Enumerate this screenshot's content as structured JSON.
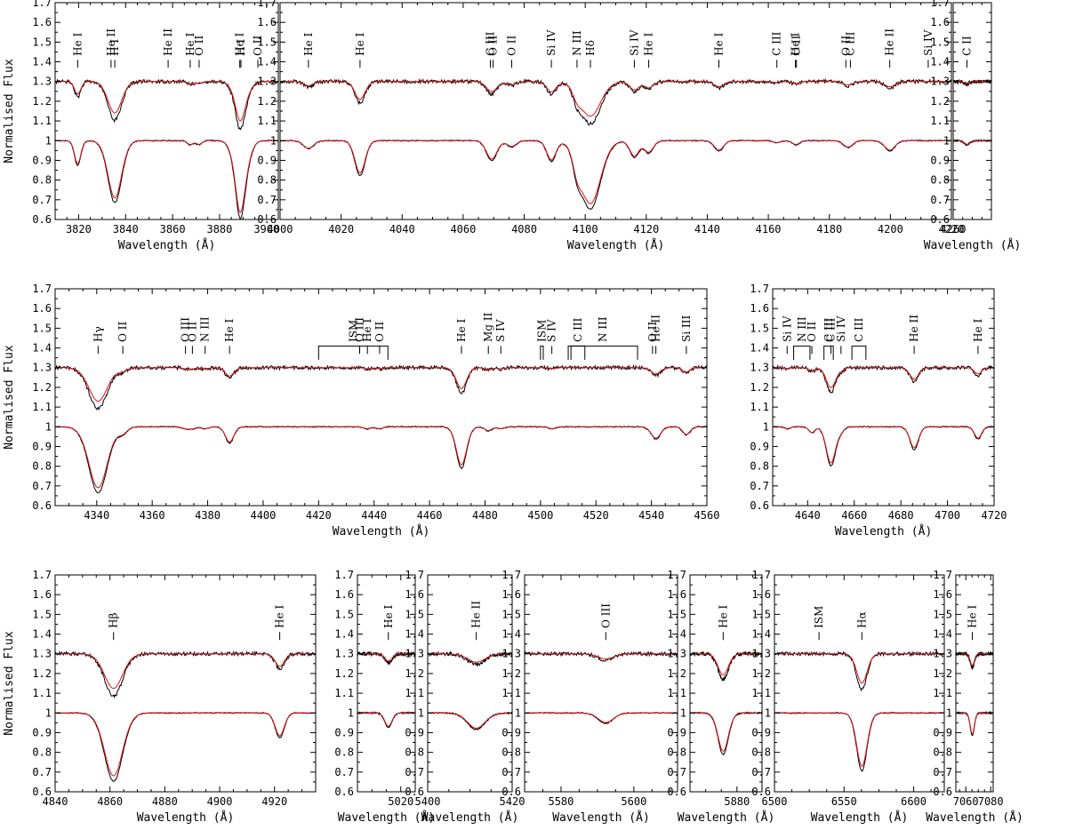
{
  "figure": {
    "ylabel": "Normalised Flux",
    "xlabel": "Wavelength (Å)",
    "colors": {
      "observed": "#000000",
      "model": "#e01010"
    }
  },
  "chart_data": [
    {
      "type": "line",
      "xlabel": "Wavelength (Å)",
      "ylabel": "Normalised Flux",
      "xlim": [
        3810,
        3905
      ],
      "ylim": [
        0.6,
        1.7
      ],
      "xticks": [
        3820,
        3840,
        3860,
        3880,
        3900
      ],
      "yticks": [
        0.6,
        0.7,
        0.8,
        0.9,
        1,
        1.1,
        1.2,
        1.3,
        1.4,
        1.5,
        1.6,
        1.7
      ],
      "lines": [
        {
          "label": "He I",
          "wl": 3819.6,
          "depth": 0.12,
          "width": 1.6
        },
        {
          "label": "He II",
          "wl": 3833.8,
          "depth": 0.0,
          "width": 1.5
        },
        {
          "label": "H I",
          "wl": 3835.4,
          "depth": 0.3,
          "width": 3.5
        },
        {
          "label": "He II",
          "wl": 3858.1,
          "depth": 0.0,
          "width": 1.5
        },
        {
          "label": "He I",
          "wl": 3867.5,
          "depth": 0.02,
          "width": 1.5
        },
        {
          "label": "O II",
          "wl": 3871.3,
          "depth": 0.02,
          "width": 1.5
        },
        {
          "label": "He I",
          "wl": 3888.6,
          "depth": 0.1,
          "width": 1.8
        },
        {
          "label": "H I",
          "wl": 3889.1,
          "depth": 0.28,
          "width": 3.2
        },
        {
          "label": "O II",
          "wl": 3896.3,
          "depth": 0.0,
          "width": 1.5
        }
      ],
      "series": [
        {
          "name": "",
          "role": "observed"
        },
        {
          "name": "",
          "role": "model"
        }
      ]
    },
    {
      "type": "line",
      "xlabel": "Wavelength (Å)",
      "ylabel": "",
      "xlim": [
        4000,
        4220
      ],
      "ylim": [
        0.6,
        1.7
      ],
      "xticks": [
        4000,
        4020,
        4040,
        4060,
        4080,
        4100,
        4120,
        4140,
        4160,
        4180,
        4200,
        4220
      ],
      "yticks": [
        0.6,
        0.7,
        0.8,
        0.9,
        1,
        1.1,
        1.2,
        1.3,
        1.4,
        1.5,
        1.6,
        1.7
      ],
      "lines": [
        {
          "label": "He I",
          "wl": 4009.3,
          "depth": 0.04,
          "width": 2.0
        },
        {
          "label": "He I",
          "wl": 4026.2,
          "depth": 0.17,
          "width": 2.0
        },
        {
          "label": "C III",
          "wl": 4068.9,
          "depth": 0.05,
          "width": 2.0
        },
        {
          "label": "O II",
          "wl": 4069.8,
          "depth": 0.05,
          "width": 2.0
        },
        {
          "label": "O II",
          "wl": 4075.9,
          "depth": 0.03,
          "width": 1.8
        },
        {
          "label": "Si IV",
          "wl": 4088.9,
          "depth": 0.1,
          "width": 1.8
        },
        {
          "label": "N III",
          "wl": 4097.3,
          "depth": 0.08,
          "width": 1.6
        },
        {
          "label": "Hδ",
          "wl": 4101.7,
          "depth": 0.33,
          "width": 4.0
        },
        {
          "label": "Si IV",
          "wl": 4116.1,
          "depth": 0.08,
          "width": 1.8
        },
        {
          "label": "He I",
          "wl": 4120.8,
          "depth": 0.06,
          "width": 1.8
        },
        {
          "label": "He I",
          "wl": 4143.8,
          "depth": 0.05,
          "width": 1.8
        },
        {
          "label": "C III",
          "wl": 4162.8,
          "depth": 0.01,
          "width": 1.5
        },
        {
          "label": "He I",
          "wl": 4168.9,
          "depth": 0.01,
          "width": 1.5
        },
        {
          "label": "O II",
          "wl": 4169.2,
          "depth": 0.01,
          "width": 1.5
        },
        {
          "label": "O II",
          "wl": 4185.4,
          "depth": 0.02,
          "width": 1.5
        },
        {
          "label": "C III",
          "wl": 4186.9,
          "depth": 0.02,
          "width": 1.5
        },
        {
          "label": "He II",
          "wl": 4199.8,
          "depth": 0.05,
          "width": 2.0
        },
        {
          "label": "Si IV",
          "wl": 4212.4,
          "depth": 0.0,
          "width": 1.5
        }
      ],
      "series": [
        {
          "name": "",
          "role": "observed"
        },
        {
          "name": "",
          "role": "model"
        }
      ]
    },
    {
      "type": "line",
      "xlabel": "Wavelength (Å)",
      "ylabel": "",
      "xlim": [
        4260,
        4280
      ],
      "ylim": [
        0.6,
        1.7
      ],
      "xticks": [
        4260
      ],
      "yticks": [
        0.6,
        0.7,
        0.8,
        0.9,
        1,
        1.1,
        1.2,
        1.3,
        1.4,
        1.5,
        1.6,
        1.7
      ],
      "lines": [
        {
          "label": "C II",
          "wl": 4267.2,
          "depth": 0.02,
          "width": 1.8
        }
      ],
      "series": [
        {
          "name": "",
          "role": "observed"
        },
        {
          "name": "",
          "role": "model"
        }
      ]
    },
    {
      "type": "line",
      "xlabel": "Wavelength (Å)",
      "ylabel": "Normalised Flux",
      "xlim": [
        4325,
        4560
      ],
      "ylim": [
        0.6,
        1.7
      ],
      "xticks": [
        4340,
        4360,
        4380,
        4400,
        4420,
        4440,
        4460,
        4480,
        4500,
        4520,
        4540,
        4560
      ],
      "yticks": [
        0.6,
        0.7,
        0.8,
        0.9,
        1,
        1.1,
        1.2,
        1.3,
        1.4,
        1.5,
        1.6,
        1.7
      ],
      "lines": [
        {
          "label": "Hγ",
          "wl": 4340.5,
          "depth": 0.32,
          "width": 4.0
        },
        {
          "label": "O II",
          "wl": 4349.4,
          "depth": 0.03,
          "width": 2.0
        },
        {
          "label": "O III",
          "wl": 4372.0,
          "depth": 0.01,
          "width": 1.5
        },
        {
          "label": "O II",
          "wl": 4374.5,
          "depth": 0.01,
          "width": 1.5
        },
        {
          "label": "N III",
          "wl": 4379.1,
          "depth": 0.01,
          "width": 1.5
        },
        {
          "label": "He I",
          "wl": 4387.9,
          "depth": 0.08,
          "width": 1.8
        },
        {
          "label": "O III",
          "wl": 4434.8,
          "depth": 0.0,
          "width": 1.5
        },
        {
          "label": "He I",
          "wl": 4437.6,
          "depth": 0.01,
          "width": 1.5
        },
        {
          "label": "O II",
          "wl": 4442.0,
          "depth": 0.01,
          "width": 1.5
        },
        {
          "label": "He I",
          "wl": 4471.5,
          "depth": 0.2,
          "width": 2.2
        },
        {
          "label": "Mg II",
          "wl": 4481.2,
          "depth": 0.02,
          "width": 1.5
        },
        {
          "label": "S IV",
          "wl": 4485.7,
          "depth": 0.01,
          "width": 1.5
        },
        {
          "label": "S IV",
          "wl": 4504.1,
          "depth": 0.01,
          "width": 1.5
        },
        {
          "label": "He II",
          "wl": 4541.6,
          "depth": 0.06,
          "width": 2.0
        },
        {
          "label": "O II",
          "wl": 4540.4,
          "depth": 0.0,
          "width": 1.5
        },
        {
          "label": "Si III",
          "wl": 4552.6,
          "depth": 0.04,
          "width": 1.6
        }
      ],
      "groups": [
        {
          "label": "ISM",
          "from": 4420,
          "to": 4445
        },
        {
          "label": "ISM",
          "from": 4500,
          "to": 4501
        },
        {
          "label": "C III",
          "from": 4511,
          "to": 4516
        },
        {
          "label": "N III",
          "from": 4510,
          "to": 4535
        }
      ],
      "series": [
        {
          "name": "",
          "role": "observed"
        },
        {
          "name": "",
          "role": "model"
        }
      ]
    },
    {
      "type": "line",
      "xlabel": "Wavelength (Å)",
      "ylabel": "",
      "xlim": [
        4625,
        4720
      ],
      "ylim": [
        0.6,
        1.7
      ],
      "xticks": [
        4640,
        4660,
        4680,
        4700,
        4720
      ],
      "yticks": [
        0.6,
        0.7,
        0.8,
        0.9,
        1,
        1.1,
        1.2,
        1.3,
        1.4,
        1.5,
        1.6,
        1.7
      ],
      "lines": [
        {
          "label": "Si IV",
          "wl": 4631.2,
          "depth": 0.01,
          "width": 1.5
        },
        {
          "label": "O II",
          "wl": 4641.8,
          "depth": 0.03,
          "width": 1.6
        },
        {
          "label": "C III",
          "wl": 4650.0,
          "depth": 0.19,
          "width": 2.4
        },
        {
          "label": "Si IV",
          "wl": 4654.3,
          "depth": 0.02,
          "width": 1.6
        },
        {
          "label": "He II",
          "wl": 4685.7,
          "depth": 0.11,
          "width": 2.2
        },
        {
          "label": "He I",
          "wl": 4713.1,
          "depth": 0.06,
          "width": 1.8
        }
      ],
      "groups": [
        {
          "label": "N III",
          "from": 4634,
          "to": 4641
        },
        {
          "label": "C III",
          "from": 4647,
          "to": 4651
        },
        {
          "label": "C III",
          "from": 4659,
          "to": 4665
        }
      ],
      "series": [
        {
          "name": "",
          "role": "observed"
        },
        {
          "name": "",
          "role": "model"
        }
      ]
    },
    {
      "type": "line",
      "xlabel": "Wavelength (Å)",
      "ylabel": "Normalised Flux",
      "xlim": [
        4840,
        4935
      ],
      "ylim": [
        0.6,
        1.7
      ],
      "xticks": [
        4840,
        4860,
        4880,
        4900,
        4920
      ],
      "yticks": [
        0.6,
        0.7,
        0.8,
        0.9,
        1,
        1.1,
        1.2,
        1.3,
        1.4,
        1.5,
        1.6,
        1.7
      ],
      "lines": [
        {
          "label": "Hβ",
          "wl": 4861.3,
          "depth": 0.33,
          "width": 4.0
        },
        {
          "label": "He I",
          "wl": 4921.9,
          "depth": 0.12,
          "width": 2.0
        }
      ],
      "series": [
        {
          "name": "",
          "role": "observed"
        },
        {
          "name": "",
          "role": "model"
        }
      ]
    },
    {
      "type": "line",
      "xlabel": "Wavelength (Å)",
      "ylabel": "",
      "xlim": [
        5005,
        5025
      ],
      "ylim": [
        0.6,
        1.7
      ],
      "xticks": [
        5020
      ],
      "yticks": [
        0.6,
        0.7,
        0.8,
        0.9,
        1,
        1.1,
        1.2,
        1.3,
        1.4,
        1.5,
        1.6,
        1.7
      ],
      "lines": [
        {
          "label": "He I",
          "wl": 5015.7,
          "depth": 0.07,
          "width": 1.5
        }
      ],
      "series": [
        {
          "name": "",
          "role": "observed"
        },
        {
          "name": "",
          "role": "model"
        }
      ]
    },
    {
      "type": "line",
      "xlabel": "Wavelength (Å)",
      "ylabel": "",
      "xlim": [
        5400,
        5420
      ],
      "ylim": [
        0.6,
        1.7
      ],
      "xticks": [
        5400,
        5420
      ],
      "yticks": [
        0.6,
        0.7,
        0.8,
        0.9,
        1,
        1.1,
        1.2,
        1.3,
        1.4,
        1.5,
        1.6,
        1.7
      ],
      "lines": [
        {
          "label": "He II",
          "wl": 5411.5,
          "depth": 0.08,
          "width": 2.5
        }
      ],
      "series": [
        {
          "name": "",
          "role": "observed"
        },
        {
          "name": "",
          "role": "model"
        }
      ]
    },
    {
      "type": "line",
      "xlabel": "Wavelength (Å)",
      "ylabel": "",
      "xlim": [
        5570,
        5612
      ],
      "ylim": [
        0.6,
        1.7
      ],
      "xticks": [
        5580,
        5600
      ],
      "yticks": [
        0.6,
        0.7,
        0.8,
        0.9,
        1,
        1.1,
        1.2,
        1.3,
        1.4,
        1.5,
        1.6,
        1.7
      ],
      "lines": [
        {
          "label": "O III",
          "wl": 5592.3,
          "depth": 0.05,
          "width": 2.5
        }
      ],
      "series": [
        {
          "name": "",
          "role": "observed"
        },
        {
          "name": "",
          "role": "model"
        }
      ]
    },
    {
      "type": "line",
      "xlabel": "Wavelength (Å)",
      "ylabel": "",
      "xlim": [
        5865,
        5888
      ],
      "ylim": [
        0.6,
        1.7
      ],
      "xticks": [
        5880
      ],
      "yticks": [
        0.6,
        0.7,
        0.8,
        0.9,
        1,
        1.1,
        1.2,
        1.3,
        1.4,
        1.5,
        1.6,
        1.7
      ],
      "lines": [
        {
          "label": "He I",
          "wl": 5875.6,
          "depth": 0.2,
          "width": 2.0
        }
      ],
      "series": [
        {
          "name": "",
          "role": "observed"
        },
        {
          "name": "",
          "role": "model"
        }
      ]
    },
    {
      "type": "line",
      "xlabel": "Wavelength (Å)",
      "ylabel": "",
      "xlim": [
        6500,
        6622
      ],
      "ylim": [
        0.6,
        1.7
      ],
      "xticks": [
        6500,
        6550,
        6600
      ],
      "yticks": [
        0.6,
        0.7,
        0.8,
        0.9,
        1,
        1.1,
        1.2,
        1.3,
        1.4,
        1.5,
        1.6,
        1.7
      ],
      "lines": [
        {
          "label": "ISM",
          "wl": 6532.0,
          "depth": 0.0,
          "width": 1.5
        },
        {
          "label": "Hα",
          "wl": 6562.8,
          "depth": 0.28,
          "width": 4.5
        }
      ],
      "series": [
        {
          "name": "",
          "role": "observed"
        },
        {
          "name": "",
          "role": "model"
        }
      ]
    },
    {
      "type": "line",
      "xlabel": "Wavelength (Å)",
      "ylabel": "",
      "xlim": [
        7052,
        7082
      ],
      "ylim": [
        0.6,
        1.7
      ],
      "xticks": [
        7060,
        7080
      ],
      "yticks": [
        0.6,
        0.7,
        0.8,
        0.9,
        1,
        1.1,
        1.2,
        1.3,
        1.4,
        1.5,
        1.6,
        1.7
      ],
      "lines": [
        {
          "label": "He I",
          "wl": 7065.2,
          "depth": 0.11,
          "width": 2.0
        }
      ],
      "series": [
        {
          "name": "",
          "role": "observed"
        },
        {
          "name": "",
          "role": "model"
        }
      ]
    }
  ]
}
